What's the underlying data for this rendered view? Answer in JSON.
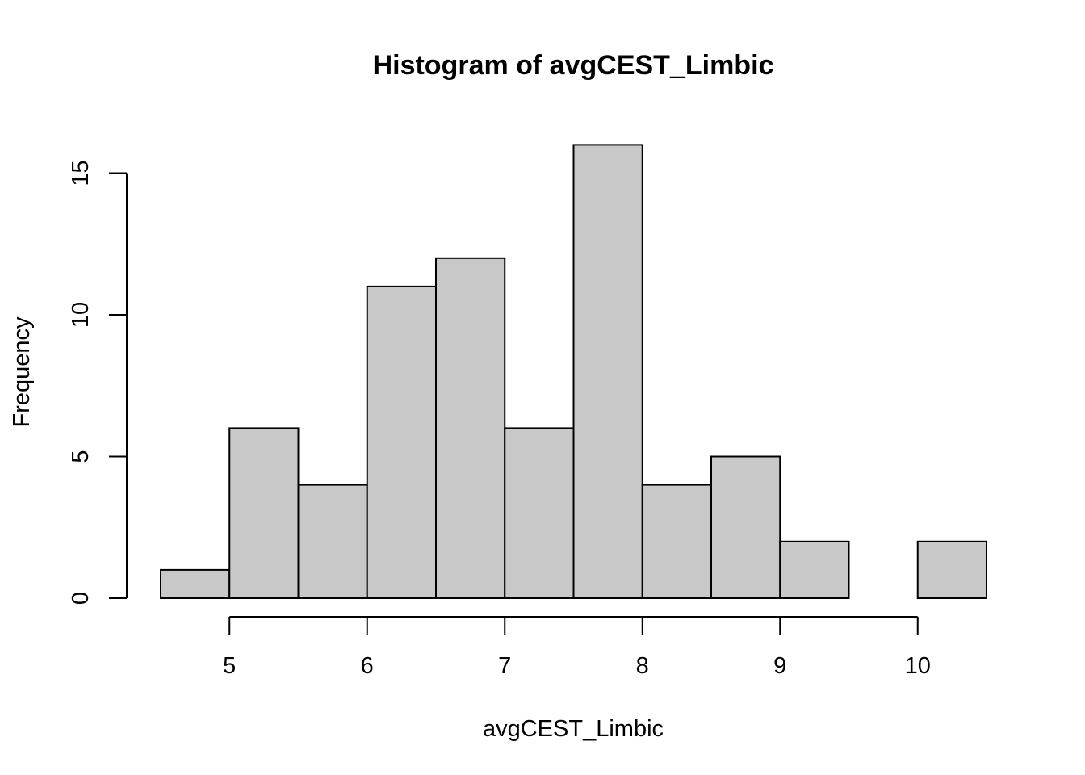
{
  "chart_data": {
    "type": "bar",
    "title": "Histogram of avgCEST_Limbic",
    "xlabel": "avgCEST_Limbic",
    "ylabel": "Frequency",
    "bins": [
      {
        "start": 4.5,
        "end": 5.0,
        "count": 1
      },
      {
        "start": 5.0,
        "end": 5.5,
        "count": 6
      },
      {
        "start": 5.5,
        "end": 6.0,
        "count": 4
      },
      {
        "start": 6.0,
        "end": 6.5,
        "count": 11
      },
      {
        "start": 6.5,
        "end": 7.0,
        "count": 12
      },
      {
        "start": 7.0,
        "end": 7.5,
        "count": 6
      },
      {
        "start": 7.5,
        "end": 8.0,
        "count": 16
      },
      {
        "start": 8.0,
        "end": 8.5,
        "count": 4
      },
      {
        "start": 8.5,
        "end": 9.0,
        "count": 5
      },
      {
        "start": 9.0,
        "end": 9.5,
        "count": 2
      },
      {
        "start": 9.5,
        "end": 10.0,
        "count": 0
      },
      {
        "start": 10.0,
        "end": 10.5,
        "count": 2
      }
    ],
    "xticks": [
      "5",
      "6",
      "7",
      "8",
      "9",
      "10"
    ],
    "yticks": [
      "0",
      "5",
      "10",
      "15"
    ],
    "xlim": [
      4.5,
      10.5
    ],
    "ylim": [
      0,
      16
    ],
    "grid": false,
    "bar_color": "#c8c8c8",
    "edge_color": "#000000"
  }
}
